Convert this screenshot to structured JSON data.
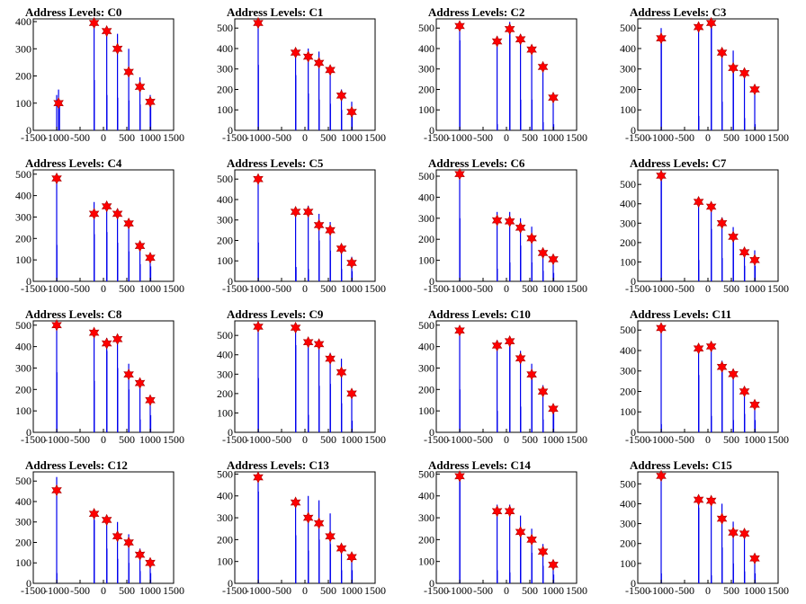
{
  "colors": {
    "bar": "#0000ee",
    "marker_fill": "#ff0000",
    "marker_stroke": "#aa0000",
    "axis": "#000000",
    "background": "#ffffff"
  },
  "chart_data": [
    {
      "type": "bar",
      "title": "Address Levels: C0",
      "xlim": [
        -1500,
        1500
      ],
      "xticks": [
        "-1500",
        "-1000",
        "-500",
        "0",
        "500",
        "1000",
        "1500"
      ],
      "ylim": [
        0,
        410
      ],
      "yticks": [
        0,
        100,
        200,
        300,
        400
      ],
      "bars": {
        "x": [
          -1000,
          -960,
          -950,
          -940,
          -200,
          -195,
          70,
          75,
          300,
          305,
          540,
          545,
          780,
          785,
          1000,
          1010
        ],
        "values": [
          130,
          150,
          105,
          95,
          400,
          185,
          380,
          130,
          355,
          120,
          300,
          110,
          195,
          95,
          130,
          115
        ]
      },
      "peaks": {
        "x": [
          -960,
          -200,
          70,
          300,
          540,
          780,
          1000
        ],
        "values": [
          100,
          395,
          365,
          300,
          215,
          160,
          105
        ]
      }
    },
    {
      "type": "bar",
      "title": "Address Levels: C1",
      "xlim": [
        -1500,
        1500
      ],
      "xticks": [
        "-1500",
        "-1000",
        "-500",
        "0",
        "500",
        "1000",
        "1500"
      ],
      "ylim": [
        0,
        545
      ],
      "yticks": [
        0,
        100,
        200,
        300,
        400,
        500
      ],
      "bars": {
        "x": [
          -1000,
          -995,
          -200,
          -195,
          70,
          75,
          300,
          305,
          540,
          545,
          780,
          785,
          1000,
          1010
        ],
        "values": [
          520,
          320,
          380,
          270,
          400,
          180,
          385,
          150,
          310,
          130,
          200,
          100,
          140,
          90
        ]
      },
      "peaks": {
        "x": [
          -1000,
          -200,
          70,
          300,
          540,
          780,
          1000
        ],
        "values": [
          525,
          380,
          360,
          330,
          295,
          170,
          90
        ]
      }
    },
    {
      "type": "bar",
      "title": "Address Levels: C2",
      "xlim": [
        -1500,
        1500
      ],
      "xticks": [
        "-1500",
        "-1000",
        "-500",
        "0",
        "500",
        "1000",
        "1500"
      ],
      "ylim": [
        0,
        545
      ],
      "yticks": [
        0,
        100,
        200,
        300,
        400,
        500
      ],
      "bars": {
        "x": [
          -1000,
          -995,
          -200,
          -195,
          70,
          75,
          300,
          305,
          540,
          545,
          780,
          785,
          1000,
          1010
        ],
        "values": [
          520,
          440,
          460,
          30,
          530,
          500,
          470,
          150,
          410,
          150,
          310,
          40,
          180,
          30
        ]
      },
      "peaks": {
        "x": [
          -1000,
          -200,
          70,
          300,
          540,
          780,
          1000
        ],
        "values": [
          510,
          435,
          495,
          445,
          395,
          310,
          160
        ]
      }
    },
    {
      "type": "bar",
      "title": "Address Levels: C3",
      "xlim": [
        -1500,
        1500
      ],
      "xticks": [
        "-1500",
        "-1000",
        "-500",
        "0",
        "500",
        "1000",
        "1500"
      ],
      "ylim": [
        0,
        545
      ],
      "yticks": [
        0,
        100,
        200,
        300,
        400,
        500
      ],
      "bars": {
        "x": [
          -1000,
          -995,
          -200,
          -195,
          70,
          75,
          300,
          305,
          540,
          545,
          780,
          785,
          1000,
          1010
        ],
        "values": [
          500,
          430,
          500,
          70,
          530,
          510,
          400,
          140,
          390,
          300,
          300,
          60,
          210,
          30
        ]
      },
      "peaks": {
        "x": [
          -1000,
          -200,
          70,
          300,
          540,
          780,
          1000
        ],
        "values": [
          450,
          505,
          525,
          380,
          305,
          280,
          200
        ]
      }
    },
    {
      "type": "bar",
      "title": "Address Levels: C4",
      "xlim": [
        -1500,
        1500
      ],
      "xticks": [
        "-1500",
        "-1000",
        "-500",
        "0",
        "500",
        "1000",
        "1500"
      ],
      "ylim": [
        0,
        520
      ],
      "yticks": [
        0,
        100,
        200,
        300,
        400,
        500
      ],
      "bars": {
        "x": [
          -1000,
          -995,
          -200,
          -195,
          70,
          75,
          300,
          305,
          540,
          545,
          780,
          785,
          1000,
          1010
        ],
        "values": [
          490,
          170,
          370,
          220,
          370,
          230,
          340,
          180,
          290,
          140,
          180,
          80,
          120,
          70
        ]
      },
      "peaks": {
        "x": [
          -1000,
          -200,
          70,
          300,
          540,
          780,
          1000
        ],
        "values": [
          480,
          315,
          350,
          315,
          270,
          165,
          110
        ]
      }
    },
    {
      "type": "bar",
      "title": "Address Levels: C5",
      "xlim": [
        -1500,
        1500
      ],
      "xticks": [
        "-1500",
        "-1000",
        "-500",
        "0",
        "500",
        "1000",
        "1500"
      ],
      "ylim": [
        0,
        545
      ],
      "yticks": [
        0,
        100,
        200,
        300,
        400,
        500
      ],
      "bars": {
        "x": [
          -1000,
          -995,
          -200,
          -190,
          70,
          75,
          300,
          305,
          540,
          545,
          780,
          785,
          1000,
          1010
        ],
        "values": [
          500,
          190,
          345,
          70,
          370,
          60,
          330,
          200,
          290,
          150,
          180,
          60,
          120,
          50
        ]
      },
      "peaks": {
        "x": [
          -1000,
          -200,
          70,
          300,
          540,
          780,
          1000
        ],
        "values": [
          500,
          340,
          340,
          275,
          250,
          160,
          90
        ]
      }
    },
    {
      "type": "bar",
      "title": "Address Levels: C6",
      "xlim": [
        -1500,
        1500
      ],
      "xticks": [
        "-1500",
        "-1000",
        "-500",
        "0",
        "500",
        "1000",
        "1500"
      ],
      "ylim": [
        0,
        530
      ],
      "yticks": [
        0,
        100,
        200,
        300,
        400,
        500
      ],
      "bars": {
        "x": [
          -1000,
          -995,
          -200,
          -195,
          70,
          75,
          300,
          305,
          540,
          545,
          780,
          785,
          1000,
          1010
        ],
        "values": [
          520,
          300,
          330,
          60,
          330,
          90,
          300,
          170,
          260,
          90,
          150,
          50,
          120,
          40
        ]
      },
      "peaks": {
        "x": [
          -1000,
          -200,
          70,
          300,
          540,
          780,
          1000
        ],
        "values": [
          510,
          290,
          285,
          255,
          205,
          135,
          105
        ]
      }
    },
    {
      "type": "bar",
      "title": "Address Levels: C7",
      "xlim": [
        -1500,
        1500
      ],
      "xticks": [
        "-1500",
        "-1000",
        "-500",
        "0",
        "500",
        "1000",
        "1500"
      ],
      "ylim": [
        0,
        575
      ],
      "yticks": [
        0,
        100,
        200,
        300,
        400,
        500
      ],
      "bars": {
        "x": [
          -1000,
          -995,
          -200,
          -195,
          70,
          75,
          300,
          305,
          540,
          545,
          780,
          785,
          1000,
          1010
        ],
        "values": [
          560,
          520,
          420,
          110,
          390,
          270,
          330,
          120,
          280,
          250,
          170,
          80,
          160,
          80
        ]
      },
      "peaks": {
        "x": [
          -1000,
          -200,
          70,
          300,
          540,
          780,
          1000
        ],
        "values": [
          545,
          410,
          385,
          300,
          230,
          150,
          110
        ]
      }
    },
    {
      "type": "bar",
      "title": "Address Levels: C8",
      "xlim": [
        -1500,
        1500
      ],
      "xticks": [
        "-1500",
        "-1000",
        "-500",
        "0",
        "500",
        "1000",
        "1500"
      ],
      "ylim": [
        0,
        520
      ],
      "yticks": [
        0,
        100,
        200,
        300,
        400,
        500
      ],
      "bars": {
        "x": [
          -1000,
          -995,
          -200,
          -195,
          70,
          75,
          300,
          305,
          540,
          545,
          780,
          785,
          1000,
          1010
        ],
        "values": [
          510,
          280,
          470,
          240,
          440,
          380,
          440,
          300,
          320,
          200,
          240,
          60,
          160,
          80
        ]
      },
      "peaks": {
        "x": [
          -1000,
          -200,
          70,
          300,
          540,
          780,
          1000
        ],
        "values": [
          500,
          465,
          415,
          435,
          270,
          230,
          150
        ]
      }
    },
    {
      "type": "bar",
      "title": "Address Levels: C9",
      "xlim": [
        -1500,
        1500
      ],
      "xticks": [
        "-1500",
        "-1000",
        "-500",
        "0",
        "500",
        "1000",
        "1500"
      ],
      "ylim": [
        0,
        575
      ],
      "yticks": [
        0,
        100,
        200,
        300,
        400,
        500
      ],
      "bars": {
        "x": [
          -1000,
          -995,
          -200,
          -195,
          70,
          75,
          300,
          305,
          540,
          545,
          780,
          785,
          1000,
          1010
        ],
        "values": [
          560,
          280,
          560,
          450,
          480,
          90,
          470,
          240,
          410,
          250,
          380,
          150,
          220,
          60
        ]
      },
      "peaks": {
        "x": [
          -1000,
          -200,
          70,
          300,
          540,
          780,
          1000
        ],
        "values": [
          545,
          540,
          465,
          455,
          380,
          310,
          200
        ]
      }
    },
    {
      "type": "bar",
      "title": "Address Levels: C10",
      "xlim": [
        -1500,
        1500
      ],
      "xticks": [
        "-1500",
        "-1000",
        "-500",
        "0",
        "500",
        "1000",
        "1500"
      ],
      "ylim": [
        0,
        520
      ],
      "yticks": [
        0,
        100,
        200,
        300,
        400,
        500
      ],
      "bars": {
        "x": [
          -1000,
          -995,
          -200,
          -195,
          70,
          75,
          300,
          305,
          540,
          545,
          780,
          785,
          1000,
          1010
        ],
        "values": [
          490,
          200,
          430,
          100,
          440,
          420,
          380,
          120,
          320,
          280,
          220,
          60,
          130,
          90
        ]
      },
      "peaks": {
        "x": [
          -1000,
          -200,
          70,
          300,
          540,
          780,
          1000
        ],
        "values": [
          475,
          405,
          425,
          345,
          270,
          190,
          110
        ]
      }
    },
    {
      "type": "bar",
      "title": "Address Levels: C11",
      "xlim": [
        -1500,
        1500
      ],
      "xticks": [
        "-1500",
        "-1000",
        "-500",
        "0",
        "500",
        "1000",
        "1500"
      ],
      "ylim": [
        0,
        545
      ],
      "yticks": [
        0,
        100,
        200,
        300,
        400,
        500
      ],
      "bars": {
        "x": [
          -1000,
          -995,
          -200,
          -195,
          70,
          75,
          300,
          305,
          540,
          545,
          780,
          785,
          1000,
          1010
        ],
        "values": [
          520,
          40,
          430,
          280,
          440,
          80,
          350,
          300,
          310,
          60,
          220,
          90,
          150,
          60
        ]
      },
      "peaks": {
        "x": [
          -1000,
          -200,
          70,
          300,
          540,
          780,
          1000
        ],
        "values": [
          510,
          410,
          420,
          320,
          285,
          200,
          135
        ]
      }
    },
    {
      "type": "bar",
      "title": "Address Levels: C12",
      "xlim": [
        -1500,
        1500
      ],
      "xticks": [
        "-1500",
        "-1000",
        "-500",
        "0",
        "500",
        "1000",
        "1500"
      ],
      "ylim": [
        0,
        545
      ],
      "yticks": [
        0,
        100,
        200,
        300,
        400,
        500
      ],
      "bars": {
        "x": [
          -1000,
          -995,
          -200,
          -195,
          70,
          75,
          300,
          305,
          540,
          545,
          780,
          785,
          1000,
          1010
        ],
        "values": [
          520,
          50,
          350,
          310,
          320,
          170,
          300,
          120,
          240,
          100,
          170,
          60,
          120,
          50
        ]
      },
      "peaks": {
        "x": [
          -1000,
          -200,
          70,
          300,
          540,
          780,
          1000
        ],
        "values": [
          455,
          340,
          310,
          230,
          200,
          140,
          100
        ]
      }
    },
    {
      "type": "bar",
      "title": "Address Levels: C13",
      "xlim": [
        -1500,
        1500
      ],
      "xticks": [
        "-1500",
        "-1000",
        "-500",
        "0",
        "500",
        "1000",
        "1500"
      ],
      "ylim": [
        0,
        510
      ],
      "yticks": [
        0,
        100,
        200,
        300,
        400,
        500
      ],
      "bars": {
        "x": [
          -1000,
          -995,
          -200,
          -195,
          70,
          75,
          300,
          305,
          540,
          545,
          780,
          785,
          1000,
          1010
        ],
        "values": [
          490,
          420,
          390,
          220,
          400,
          150,
          380,
          200,
          320,
          180,
          180,
          60,
          130,
          60
        ]
      },
      "peaks": {
        "x": [
          -1000,
          -200,
          70,
          300,
          540,
          780,
          1000
        ],
        "values": [
          485,
          370,
          300,
          275,
          215,
          160,
          120
        ]
      }
    },
    {
      "type": "bar",
      "title": "Address Levels: C14",
      "xlim": [
        -1500,
        1500
      ],
      "xticks": [
        "-1500",
        "-1000",
        "-500",
        "0",
        "500",
        "1000",
        "1500"
      ],
      "ylim": [
        0,
        510
      ],
      "yticks": [
        0,
        100,
        200,
        300,
        400,
        500
      ],
      "bars": {
        "x": [
          -1000,
          -995,
          -200,
          -195,
          70,
          75,
          300,
          305,
          540,
          545,
          780,
          785,
          1000,
          1010
        ],
        "values": [
          500,
          470,
          360,
          60,
          360,
          50,
          310,
          230,
          250,
          140,
          180,
          80,
          100,
          40
        ]
      },
      "peaks": {
        "x": [
          -1000,
          -200,
          70,
          300,
          540,
          780,
          1000
        ],
        "values": [
          490,
          330,
          330,
          235,
          200,
          145,
          85
        ]
      }
    },
    {
      "type": "bar",
      "title": "Address Levels: C15",
      "xlim": [
        -1500,
        1500
      ],
      "xticks": [
        "-1500",
        "-1000",
        "-500",
        "0",
        "500",
        "1000",
        "1500"
      ],
      "ylim": [
        0,
        560
      ],
      "yticks": [
        0,
        100,
        200,
        300,
        400,
        500
      ],
      "bars": {
        "x": [
          -1000,
          -995,
          -200,
          -195,
          70,
          75,
          300,
          305,
          540,
          545,
          780,
          785,
          1000,
          1010
        ],
        "values": [
          540,
          50,
          430,
          380,
          430,
          40,
          400,
          180,
          310,
          100,
          260,
          60,
          140,
          50
        ]
      },
      "peaks": {
        "x": [
          -1000,
          -200,
          70,
          300,
          540,
          780,
          1000
        ],
        "values": [
          540,
          420,
          415,
          325,
          255,
          250,
          125
        ]
      }
    }
  ]
}
